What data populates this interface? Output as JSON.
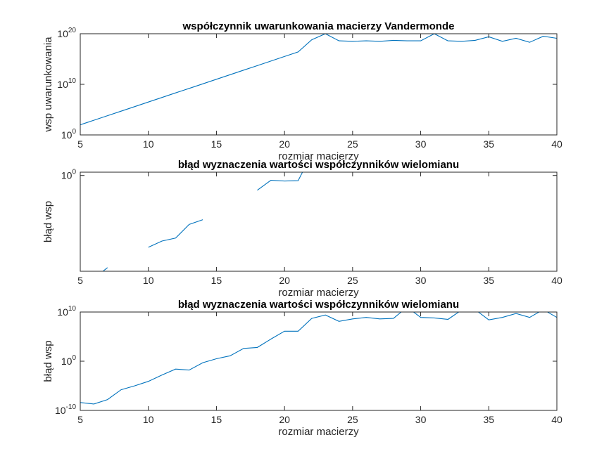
{
  "chart_data": [
    {
      "type": "line",
      "title": "współczynnik uwarunkowania macierzy Vandermonde",
      "xlabel": "rozmiar macierzy",
      "ylabel": "wsp uwarunkowania",
      "yscale": "log",
      "xlim": [
        5,
        40
      ],
      "ylim_exp": [
        0,
        20
      ],
      "xticks": [
        "5",
        "10",
        "15",
        "20",
        "25",
        "30",
        "35",
        "40"
      ],
      "yticks": [
        {
          "base": "10",
          "exp": "0"
        },
        {
          "base": "10",
          "exp": "10"
        },
        {
          "base": "10",
          "exp": "20"
        }
      ],
      "color": "#0072BD",
      "x": [
        5,
        6,
        7,
        8,
        9,
        10,
        11,
        12,
        13,
        14,
        15,
        16,
        17,
        18,
        19,
        20,
        21,
        22,
        23,
        24,
        25,
        26,
        27,
        28,
        29,
        30,
        31,
        32,
        33,
        34,
        35,
        36,
        37,
        38,
        39,
        40
      ],
      "log10_values": [
        2.0,
        2.9,
        3.8,
        4.7,
        5.6,
        6.5,
        7.4,
        8.3,
        9.2,
        10.1,
        11.0,
        11.9,
        12.8,
        13.7,
        14.6,
        15.5,
        16.4,
        18.8,
        20.0,
        18.6,
        18.5,
        18.6,
        18.5,
        18.7,
        18.6,
        18.6,
        20.0,
        18.6,
        18.5,
        18.7,
        19.4,
        18.5,
        19.1,
        18.3,
        19.5,
        19.1
      ]
    },
    {
      "type": "line",
      "title": "błąd wyznaczenia wartości współczynników wielomianu",
      "xlabel": "rozmiar macierzy",
      "ylabel": "błąd wsp",
      "yscale": "log",
      "xlim": [
        5,
        40
      ],
      "ylim_exp": [
        -26,
        0.9
      ],
      "xticks": [
        "5",
        "10",
        "15",
        "20",
        "25",
        "30",
        "35",
        "40"
      ],
      "yticks": [
        {
          "base": "10",
          "exp": "0"
        }
      ],
      "color": "#0072BD",
      "x": [
        5,
        6,
        7,
        8,
        9,
        10,
        11,
        12,
        13,
        14,
        15,
        16,
        17,
        18,
        19,
        20,
        21,
        22,
        23,
        24,
        25,
        26,
        27,
        28,
        29,
        30,
        31,
        32,
        33,
        34,
        35,
        36,
        37,
        38,
        39,
        40
      ],
      "log10_values": [
        null,
        -28.0,
        -25.0,
        null,
        null,
        -19.5,
        -17.8,
        -17.0,
        -13.3,
        -12.0,
        null,
        null,
        null,
        -4.0,
        -1.3,
        -1.5,
        -1.4,
        5.8,
        5.7,
        2.9,
        4.3,
        4.7,
        3.4,
        5.8,
        null,
        6.0,
        4.5,
        4.4,
        null,
        6.3,
        4.4,
        3.8,
        5.8,
        5.1,
        9.0,
        5.0
      ]
    },
    {
      "type": "line",
      "title": "błąd wyznaczenia wartości współczynników wielomianu",
      "xlabel": "rozmiar macierzy",
      "ylabel": "błąd wsp",
      "yscale": "log",
      "xlim": [
        5,
        40
      ],
      "ylim_exp": [
        -10,
        10
      ],
      "xticks": [
        "5",
        "10",
        "15",
        "20",
        "25",
        "30",
        "35",
        "40"
      ],
      "yticks": [
        {
          "base": "10",
          "exp": "-10"
        },
        {
          "base": "10",
          "exp": "0"
        },
        {
          "base": "10",
          "exp": "10"
        }
      ],
      "color": "#0072BD",
      "x": [
        5,
        6,
        7,
        8,
        9,
        10,
        11,
        12,
        13,
        14,
        15,
        16,
        17,
        18,
        19,
        20,
        21,
        22,
        23,
        24,
        25,
        26,
        27,
        28,
        29,
        30,
        31,
        32,
        33,
        34,
        35,
        36,
        37,
        38,
        39,
        40
      ],
      "log10_values": [
        -8.4,
        -8.7,
        -7.8,
        -5.8,
        -5.0,
        -4.1,
        -2.8,
        -1.6,
        -1.8,
        -0.3,
        0.5,
        1.1,
        2.6,
        2.8,
        4.5,
        6.1,
        6.1,
        8.7,
        9.4,
        8.1,
        8.6,
        8.9,
        8.6,
        8.7,
        11.0,
        8.9,
        8.8,
        8.5,
        10.4,
        10.5,
        8.4,
        8.9,
        9.7,
        8.9,
        10.5,
        8.9
      ]
    }
  ]
}
